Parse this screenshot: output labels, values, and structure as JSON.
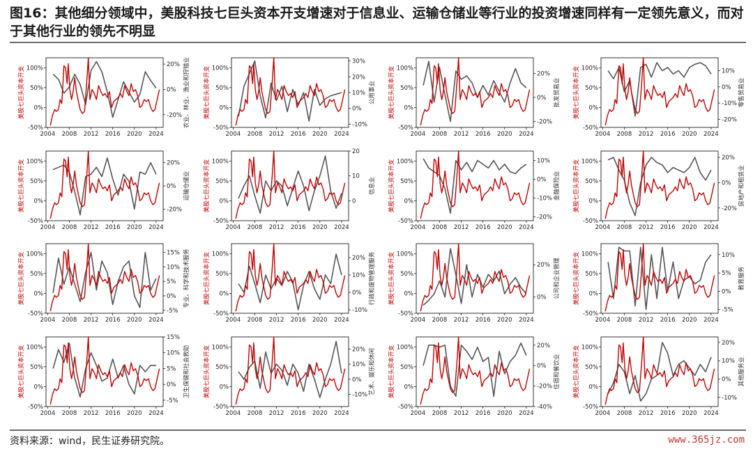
{
  "page": {
    "title": "图16：其他细分领域中，美股科技七巨头资本开支增速对于信息业、运输仓储业等行业的投资增速同样有一定领先意义，而对于其他行业的领先不明显",
    "source": "资料来源：wind，民生证券研究院。",
    "watermark": "www.365jz.com"
  },
  "colors": {
    "capex": "#c00000",
    "industry": "#555555"
  },
  "chart_data": {
    "type": "line",
    "left_axis_label": "美股七巨头资本开支",
    "left_ylim": [
      -50,
      125
    ],
    "left_ticks": [
      "-50%",
      "0%",
      "50%",
      "100%"
    ],
    "x_ticks": [
      "2004",
      "2008",
      "2012",
      "2016",
      "2020",
      "2024"
    ],
    "capex_series": {
      "x": [
        2004.5,
        2004.9,
        2005.3,
        2005.6,
        2006.0,
        2006.3,
        2006.6,
        2007.0,
        2007.3,
        2007.6,
        2007.8,
        2008.1,
        2008.4,
        2008.7,
        2009.0,
        2009.3,
        2009.6,
        2010.0,
        2010.4,
        2010.8,
        2011.2,
        2011.5,
        2011.8,
        2012.2,
        2012.6,
        2013.0,
        2013.4,
        2013.8,
        2014.2,
        2014.6,
        2015.0,
        2015.4,
        2015.8,
        2016.2,
        2016.6,
        2017.0,
        2017.4,
        2017.8,
        2018.2,
        2018.6,
        2019.0,
        2019.4,
        2019.8,
        2020.2,
        2020.6,
        2021.0,
        2021.4,
        2021.8,
        2022.2,
        2022.6,
        2023.0,
        2023.4,
        2023.8,
        2024.2,
        2024.6
      ],
      "y": [
        -45,
        -20,
        -5,
        -10,
        -5,
        20,
        10,
        105,
        100,
        60,
        110,
        45,
        20,
        40,
        75,
        40,
        20,
        -5,
        -15,
        -10,
        60,
        125,
        20,
        45,
        35,
        20,
        55,
        40,
        30,
        35,
        25,
        40,
        0,
        15,
        20,
        25,
        35,
        25,
        55,
        40,
        30,
        60,
        40,
        45,
        30,
        0,
        5,
        20,
        15,
        20,
        0,
        -10,
        -5,
        20,
        45
      ]
    },
    "panels": [
      {
        "industry_label": "农业、林业、渔业和狩猎业",
        "right_ylim": [
          -30,
          25
        ],
        "right_ticks": [
          "-20%",
          "0%",
          "20%"
        ],
        "x": [
          2005,
          2006,
          2007,
          2008,
          2009,
          2010,
          2011,
          2012,
          2013,
          2014,
          2015,
          2016,
          2017,
          2018,
          2019,
          2020,
          2021,
          2022,
          2023,
          2024
        ],
        "y": [
          12,
          8,
          -3,
          2,
          12,
          4,
          -12,
          15,
          22,
          14,
          -2,
          -22,
          -8,
          6,
          -2,
          -10,
          -4,
          14,
          7,
          1
        ]
      },
      {
        "industry_label": "公用事业",
        "right_ylim": [
          -12,
          32
        ],
        "right_ticks": [
          "-10%",
          "0%",
          "10%",
          "20%",
          "30%"
        ],
        "x": [
          2005,
          2006,
          2007,
          2008,
          2009,
          2010,
          2011,
          2012,
          2013,
          2014,
          2015,
          2016,
          2017,
          2018,
          2019,
          2020,
          2021,
          2022,
          2023,
          2024
        ],
        "y": [
          -5,
          14,
          22,
          30,
          8,
          -6,
          16,
          5,
          14,
          -2,
          12,
          2,
          10,
          -8,
          12,
          2,
          6,
          8,
          9,
          10
        ]
      },
      {
        "industry_label": "批发贸易业",
        "right_ylim": [
          -25,
          33
        ],
        "right_ticks": [
          "-20%",
          "0%",
          "20%"
        ],
        "x": [
          2005,
          2006,
          2007,
          2008,
          2009,
          2010,
          2011,
          2012,
          2013,
          2014,
          2015,
          2016,
          2017,
          2018,
          2019,
          2020,
          2021,
          2022,
          2023,
          2024
        ],
        "y": [
          10,
          30,
          -4,
          25,
          2,
          -20,
          22,
          15,
          18,
          12,
          0,
          10,
          2,
          14,
          5,
          -4,
          12,
          24,
          12,
          8
        ]
      },
      {
        "industry_label": "零售贸易业",
        "right_ylim": [
          -25,
          18
        ],
        "right_ticks": [
          "-20%",
          "-10%",
          "0%",
          "10%"
        ],
        "x": [
          2005,
          2006,
          2007,
          2008,
          2009,
          2010,
          2011,
          2012,
          2013,
          2014,
          2015,
          2016,
          2017,
          2018,
          2019,
          2020,
          2021,
          2022,
          2023,
          2024
        ],
        "y": [
          10,
          5,
          12,
          -3,
          4,
          -18,
          12,
          14,
          6,
          15,
          10,
          12,
          8,
          10,
          6,
          12,
          14,
          15,
          13,
          8
        ]
      },
      {
        "industry_label": "运输仓储业",
        "right_ylim": [
          -30,
          30
        ],
        "right_ticks": [
          "-20%",
          "0%",
          "20%"
        ],
        "x": [
          2005,
          2006,
          2007,
          2008,
          2009,
          2010,
          2011,
          2012,
          2013,
          2014,
          2015,
          2016,
          2017,
          2018,
          2019,
          2020,
          2021,
          2022,
          2023,
          2024
        ],
        "y": [
          14,
          16,
          18,
          12,
          -5,
          -25,
          8,
          10,
          16,
          8,
          24,
          6,
          -8,
          10,
          4,
          -20,
          12,
          10,
          20,
          10
        ]
      },
      {
        "industry_label": "信息业",
        "right_ylim": [
          -8,
          20
        ],
        "right_ticks": [
          "0",
          "10",
          "20"
        ],
        "x": [
          2005,
          2006,
          2007,
          2008,
          2009,
          2010,
          2011,
          2012,
          2013,
          2014,
          2015,
          2016,
          2017,
          2018,
          2019,
          2020,
          2021,
          2022,
          2023,
          2024
        ],
        "y": [
          1,
          6,
          10,
          2,
          -5,
          8,
          4,
          8,
          6,
          -2,
          5,
          12,
          6,
          -4,
          4,
          10,
          18,
          4,
          -3,
          3
        ]
      },
      {
        "industry_label": "金融保险业",
        "right_ylim": [
          -22,
          15
        ],
        "right_ticks": [
          "-20%",
          "-10%",
          "0%",
          "10%"
        ],
        "x": [
          2005,
          2006,
          2007,
          2008,
          2009,
          2010,
          2011,
          2012,
          2013,
          2014,
          2015,
          2016,
          2017,
          2018,
          2019,
          2020,
          2021,
          2022,
          2023,
          2024
        ],
        "y": [
          11,
          6,
          4,
          2,
          -5,
          -18,
          10,
          5,
          9,
          4,
          10,
          8,
          6,
          10,
          5,
          8,
          4,
          3,
          6,
          8
        ]
      },
      {
        "industry_label": "房地产和租赁业",
        "right_ylim": [
          -30,
          25
        ],
        "right_ticks": [
          "-20%",
          "0%",
          "20%"
        ],
        "x": [
          2005,
          2006,
          2007,
          2008,
          2009,
          2010,
          2011,
          2012,
          2013,
          2014,
          2015,
          2016,
          2017,
          2018,
          2019,
          2020,
          2021,
          2022,
          2023,
          2024
        ],
        "y": [
          18,
          20,
          10,
          2,
          -16,
          -26,
          0,
          14,
          20,
          16,
          14,
          8,
          12,
          10,
          8,
          12,
          20,
          8,
          2,
          10
        ]
      },
      {
        "industry_label": "专业、科学和技术服务",
        "right_ylim": [
          -6,
          18
        ],
        "right_ticks": [
          "-5%",
          "0%",
          "5%",
          "10%",
          "15%"
        ],
        "x": [
          2005,
          2006,
          2007,
          2008,
          2009,
          2010,
          2011,
          2012,
          2013,
          2014,
          2015,
          2016,
          2017,
          2018,
          2019,
          2020,
          2021,
          2022,
          2023,
          2024
        ],
        "y": [
          1,
          13,
          4,
          10,
          4,
          -2,
          8,
          15,
          2,
          12,
          8,
          -3,
          5,
          10,
          12,
          0,
          -4,
          15,
          2,
          6
        ]
      },
      {
        "industry_label": "行政和废物管理服务",
        "right_ylim": [
          -12,
          28
        ],
        "right_ticks": [
          "-10%",
          "0%",
          "10%",
          "20%"
        ],
        "x": [
          2005,
          2006,
          2007,
          2008,
          2009,
          2010,
          2011,
          2012,
          2013,
          2014,
          2015,
          2016,
          2017,
          2018,
          2019,
          2020,
          2021,
          2022,
          2023,
          2024
        ],
        "y": [
          5,
          0,
          15,
          5,
          -6,
          10,
          2,
          8,
          4,
          12,
          6,
          -10,
          4,
          12,
          2,
          -4,
          10,
          5,
          22,
          10
        ]
      },
      {
        "industry_label": "公司和企业管理",
        "right_ylim": [
          -10,
          33
        ],
        "right_ticks": [
          "0%",
          "20%"
        ],
        "x": [
          2005,
          2006,
          2007,
          2008,
          2009,
          2010,
          2011,
          2012,
          2013,
          2014,
          2015,
          2016,
          2017,
          2018,
          2019,
          2020,
          2021,
          2022,
          2023,
          2024
        ],
        "y": [
          -5,
          -2,
          2,
          10,
          0,
          30,
          14,
          -4,
          20,
          0,
          14,
          6,
          14,
          10,
          16,
          2,
          8,
          12,
          6,
          2
        ]
      },
      {
        "industry_label": "教育服务",
        "right_ylim": [
          -6,
          13
        ],
        "right_ticks": [
          "-5%",
          "0%",
          "5%",
          "10%"
        ],
        "x": [
          2005,
          2006,
          2007,
          2008,
          2009,
          2010,
          2011,
          2012,
          2013,
          2014,
          2015,
          2016,
          2017,
          2018,
          2019,
          2020,
          2021,
          2022,
          2023,
          2024
        ],
        "y": [
          8,
          -2,
          12,
          11,
          11,
          -4,
          12,
          -5,
          10,
          -2,
          12,
          0,
          8,
          -2,
          3,
          4,
          2,
          3,
          8,
          10
        ]
      },
      {
        "industry_label": "卫生保健和社会救助",
        "right_ylim": [
          -7,
          15
        ],
        "right_ticks": [
          "-5%",
          "0%",
          "5%",
          "10%",
          "15%"
        ],
        "x": [
          2005,
          2006,
          2007,
          2008,
          2009,
          2010,
          2011,
          2012,
          2013,
          2014,
          2015,
          2016,
          2017,
          2018,
          2019,
          2020,
          2021,
          2022,
          2023,
          2024
        ],
        "y": [
          5,
          11,
          7,
          13,
          2,
          -4,
          5,
          10,
          6,
          1,
          2,
          8,
          2,
          6,
          0,
          -3,
          6,
          4,
          6,
          6
        ]
      },
      {
        "industry_label": "艺术、娱乐和休闲",
        "right_ylim": [
          -18,
          28
        ],
        "right_ticks": [
          "-10%",
          "0%",
          "10%",
          "20%"
        ],
        "x": [
          2005,
          2006,
          2007,
          2008,
          2009,
          2010,
          2011,
          2012,
          2013,
          2014,
          2015,
          2016,
          2017,
          2018,
          2019,
          2020,
          2021,
          2022,
          2023,
          2024
        ],
        "y": [
          5,
          0,
          8,
          12,
          -6,
          18,
          4,
          10,
          6,
          -4,
          10,
          4,
          -8,
          10,
          0,
          -12,
          0,
          10,
          25,
          4
        ]
      },
      {
        "industry_label": "住宿和餐饮业",
        "right_ylim": [
          -40,
          28
        ],
        "right_ticks": [
          "-40%",
          "-20%",
          "0%",
          "20%"
        ],
        "x": [
          2005,
          2006,
          2007,
          2008,
          2009,
          2010,
          2011,
          2012,
          2013,
          2014,
          2015,
          2016,
          2017,
          2018,
          2019,
          2020,
          2021,
          2022,
          2023,
          2024
        ],
        "y": [
          0,
          20,
          20,
          18,
          20,
          -20,
          -30,
          20,
          14,
          6,
          18,
          4,
          8,
          -30,
          14,
          -8,
          4,
          10,
          22,
          10
        ]
      },
      {
        "industry_label": "其他服务业",
        "right_ylim": [
          -15,
          23
        ],
        "right_ticks": [
          "-10%",
          "0%",
          "10%",
          "20%"
        ],
        "x": [
          2005,
          2006,
          2007,
          2008,
          2009,
          2010,
          2011,
          2012,
          2013,
          2014,
          2015,
          2016,
          2017,
          2018,
          2019,
          2020,
          2021,
          2022,
          2023,
          2024
        ],
        "y": [
          -8,
          -2,
          8,
          4,
          -8,
          2,
          -12,
          -8,
          0,
          2,
          20,
          14,
          2,
          8,
          10,
          6,
          2,
          8,
          4,
          12
        ]
      }
    ]
  }
}
